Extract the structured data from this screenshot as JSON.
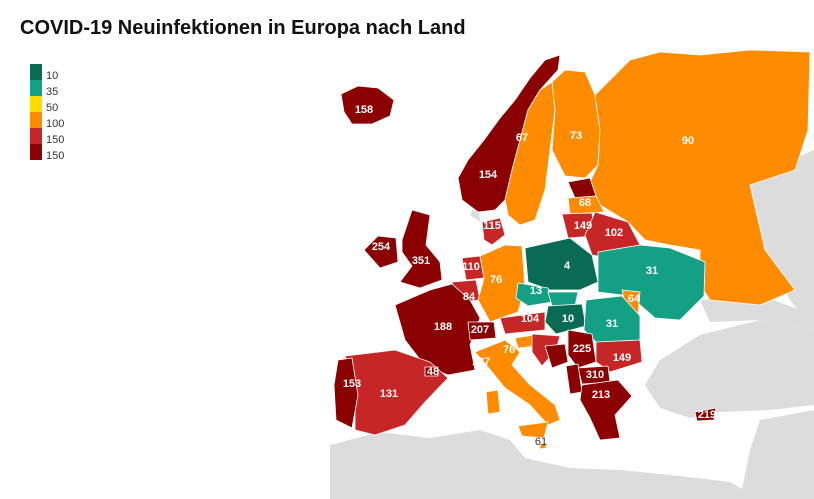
{
  "title": "COVID-19 Neuinfektionen in Europa nach Land",
  "legend": [
    {
      "label": "10",
      "color": "#0a6b55"
    },
    {
      "label": "35",
      "color": "#14a085"
    },
    {
      "label": "50",
      "color": "#ffdd00"
    },
    {
      "label": "100",
      "color": "#ff8c00"
    },
    {
      "label": "150",
      "color": "#c62626"
    },
    {
      "label": "",
      "color": "#8b0000"
    }
  ],
  "legend_extra_label": "150",
  "map_data": {
    "metric": "COVID-19 Neuinfektionen",
    "countries": [
      {
        "id": "iceland",
        "value": "158",
        "color": "#8b0000"
      },
      {
        "id": "norway",
        "value": "154",
        "color": "#8b0000"
      },
      {
        "id": "sweden",
        "value": "67",
        "color": "#ff8c00"
      },
      {
        "id": "finland",
        "value": "73",
        "color": "#ff8c00"
      },
      {
        "id": "russia",
        "value": "90",
        "color": "#ff8c00"
      },
      {
        "id": "estonia",
        "value": "",
        "color": "#8b0000"
      },
      {
        "id": "latvia",
        "value": "68",
        "color": "#ff8c00"
      },
      {
        "id": "lithuania",
        "value": "149",
        "color": "#c62626"
      },
      {
        "id": "belarus",
        "value": "102",
        "color": "#c62626"
      },
      {
        "id": "denmark",
        "value": "115",
        "color": "#c62626"
      },
      {
        "id": "ireland",
        "value": "254",
        "color": "#8b0000"
      },
      {
        "id": "uk",
        "value": "351",
        "color": "#8b0000"
      },
      {
        "id": "netherlands",
        "value": "110",
        "color": "#c62626"
      },
      {
        "id": "belgium",
        "value": "84",
        "color": "#c62626"
      },
      {
        "id": "germany",
        "value": "76",
        "color": "#ff8c00"
      },
      {
        "id": "poland",
        "value": "4",
        "color": "#0a6b55"
      },
      {
        "id": "ukraine",
        "value": "31",
        "color": "#14a085"
      },
      {
        "id": "czechia",
        "value": "13",
        "color": "#14a085"
      },
      {
        "id": "slovakia",
        "value": "",
        "color": "#14a085"
      },
      {
        "id": "moldova",
        "value": "64",
        "color": "#ff8c00"
      },
      {
        "id": "hungary",
        "value": "10",
        "color": "#0a6b55"
      },
      {
        "id": "romania",
        "value": "31",
        "color": "#14a085"
      },
      {
        "id": "france",
        "value": "188",
        "color": "#8b0000"
      },
      {
        "id": "switzerland",
        "value": "207",
        "color": "#8b0000"
      },
      {
        "id": "austria",
        "value": "104",
        "color": "#c62626"
      },
      {
        "id": "slovenia",
        "value": "76",
        "color": "#ff8c00"
      },
      {
        "id": "croatia",
        "value": "",
        "color": "#c62626"
      },
      {
        "id": "bosnia",
        "value": "",
        "color": "#8b0000"
      },
      {
        "id": "serbia",
        "value": "225",
        "color": "#8b0000"
      },
      {
        "id": "bulgaria",
        "value": "149",
        "color": "#c62626"
      },
      {
        "id": "north-macedonia",
        "value": "310",
        "color": "#8b0000"
      },
      {
        "id": "albania",
        "value": "",
        "color": "#8b0000"
      },
      {
        "id": "greece",
        "value": "213",
        "color": "#8b0000"
      },
      {
        "id": "italy",
        "value": "127",
        "color": "#ff8c00"
      },
      {
        "id": "malta",
        "value": "61",
        "color": "#ff8c00"
      },
      {
        "id": "spain",
        "value": "131",
        "color": "#c62626"
      },
      {
        "id": "portugal",
        "value": "153",
        "color": "#8b0000"
      },
      {
        "id": "andorra",
        "value": "48",
        "color": "#8b0000"
      },
      {
        "id": "cyprus",
        "value": "219",
        "color": "#8b0000"
      }
    ]
  }
}
